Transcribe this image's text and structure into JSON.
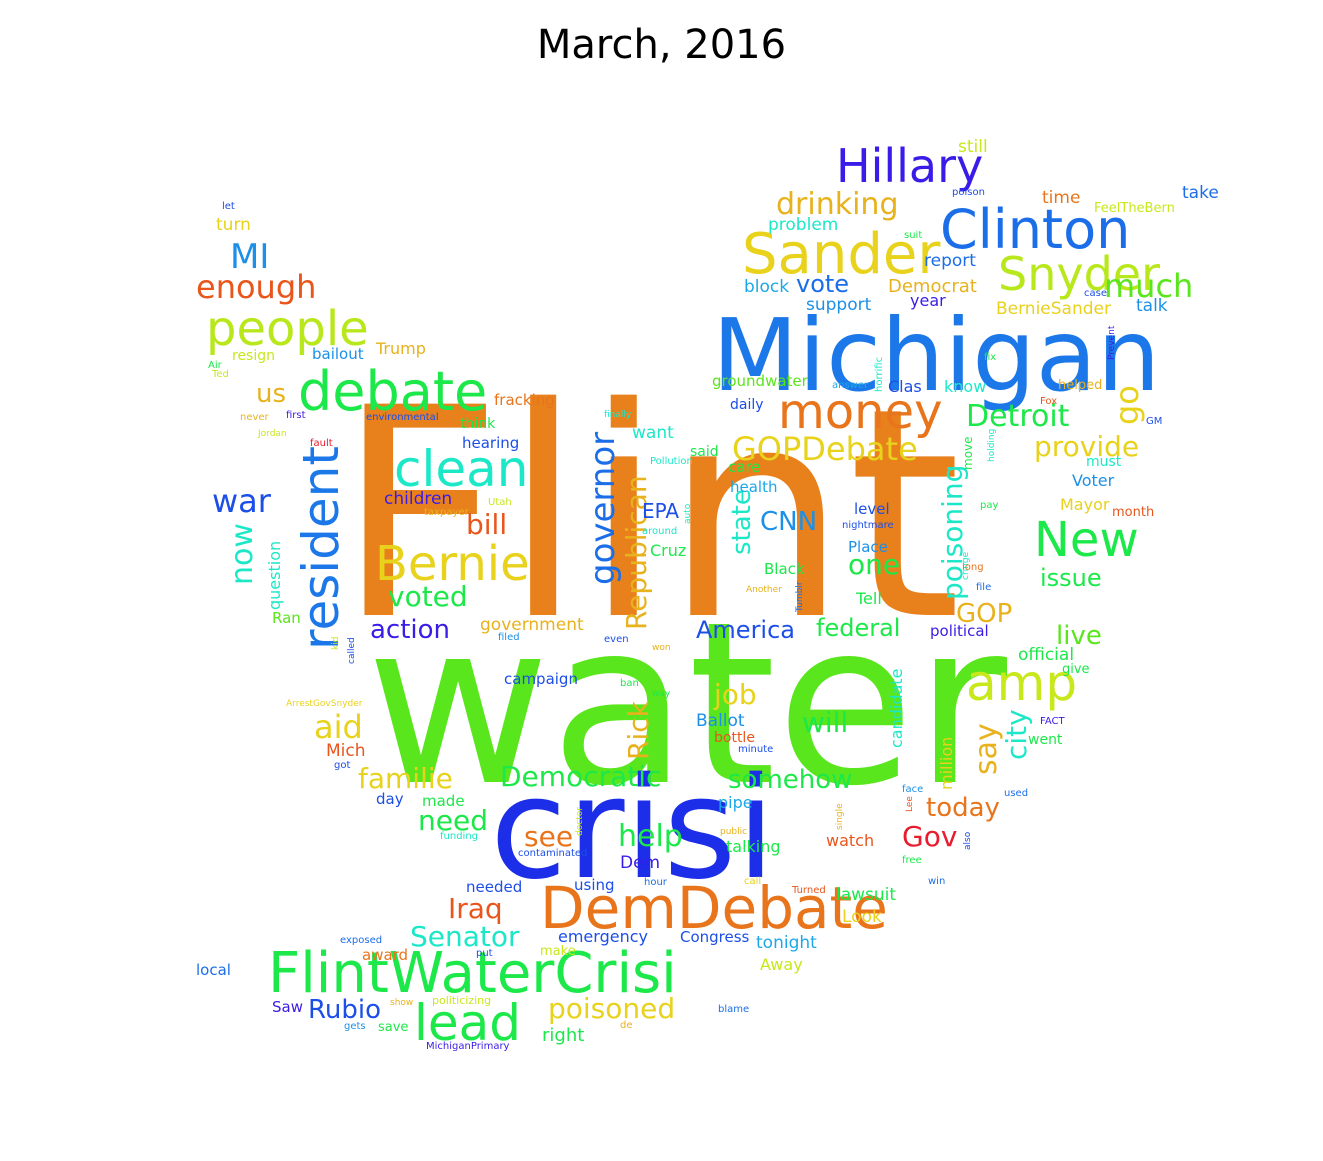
{
  "title": "March, 2016",
  "words": [
    {
      "text": "Flint",
      "size": "xxl",
      "color": "#e8811c"
    },
    {
      "text": "water",
      "size": "xxl",
      "color": "#5ae61c"
    },
    {
      "text": "crisi",
      "size": "xl",
      "color": "#1c2ee8"
    },
    {
      "text": "Michigan",
      "size": "xl",
      "color": "#1c78e8"
    },
    {
      "text": "DemDebate",
      "size": "l",
      "color": "#e8741c"
    },
    {
      "text": "FlintWaterCrisi",
      "size": "l",
      "color": "#1ce84a"
    },
    {
      "text": "Hillary",
      "size": "l",
      "color": "#3a1ce8"
    },
    {
      "text": "Clinton",
      "size": "l",
      "color": "#1c6ee8"
    },
    {
      "text": "Sander",
      "size": "l",
      "color": "#e8d21c"
    },
    {
      "text": "Snyder",
      "size": "l",
      "color": "#b8e81c"
    },
    {
      "text": "debate",
      "size": "l",
      "color": "#1ce84a"
    },
    {
      "text": "people",
      "size": "l",
      "color": "#b8e81c"
    },
    {
      "text": "money",
      "size": "l",
      "color": "#e8741c"
    },
    {
      "text": "clean",
      "size": "l",
      "color": "#1ce8c8"
    },
    {
      "text": "Bernie",
      "size": "l",
      "color": "#e8d21c"
    },
    {
      "text": "resident",
      "size": "l",
      "color": "#1c78e8"
    },
    {
      "text": "New",
      "size": "l",
      "color": "#1ce84a"
    },
    {
      "text": "amp",
      "size": "l",
      "color": "#c8e81c"
    },
    {
      "text": "lead",
      "size": "l",
      "color": "#1ce84a"
    },
    {
      "text": "drinking",
      "size": "m",
      "color": "#e8b21c"
    },
    {
      "text": "MI",
      "size": "m",
      "color": "#1c90e8"
    },
    {
      "text": "enough",
      "size": "m",
      "color": "#e8561c"
    },
    {
      "text": "much",
      "size": "m",
      "color": "#5ae61c"
    },
    {
      "text": "go",
      "size": "m",
      "color": "#e8d21c"
    },
    {
      "text": "Detroit",
      "size": "m",
      "color": "#1ce84a"
    },
    {
      "text": "provide",
      "size": "m",
      "color": "#e8d21c"
    },
    {
      "text": "GOPDebate",
      "size": "m",
      "color": "#e8d21c"
    },
    {
      "text": "governor",
      "size": "m",
      "color": "#1c6ee8"
    },
    {
      "text": "Republican",
      "size": "m",
      "color": "#e8b21c"
    },
    {
      "text": "poisoning",
      "size": "m",
      "color": "#1ce8c8"
    },
    {
      "text": "war",
      "size": "m",
      "color": "#1c4ee8"
    },
    {
      "text": "now",
      "size": "m",
      "color": "#1ce8c8"
    },
    {
      "text": "us",
      "size": "m",
      "color": "#e8b21c"
    },
    {
      "text": "voted",
      "size": "m",
      "color": "#1ce84a"
    },
    {
      "text": "bill",
      "size": "m",
      "color": "#e8561c"
    },
    {
      "text": "state",
      "size": "m",
      "color": "#1ce8c8"
    },
    {
      "text": "CNN",
      "size": "m",
      "color": "#1c90e8"
    },
    {
      "text": "one",
      "size": "m",
      "color": "#1ce84a"
    },
    {
      "text": "issue",
      "size": "m",
      "color": "#1ce84a"
    },
    {
      "text": "GOP",
      "size": "m",
      "color": "#e8b21c"
    },
    {
      "text": "live",
      "size": "m",
      "color": "#5ae61c"
    },
    {
      "text": "say",
      "size": "m",
      "color": "#e8b21c"
    },
    {
      "text": "city",
      "size": "m",
      "color": "#1ce8c8"
    },
    {
      "text": "job",
      "size": "m",
      "color": "#e8d21c"
    },
    {
      "text": "will",
      "size": "m",
      "color": "#1ce84a"
    },
    {
      "text": "aid",
      "size": "m",
      "color": "#e8d21c"
    },
    {
      "text": "Rick",
      "size": "m",
      "color": "#e8b21c"
    },
    {
      "text": "familie",
      "size": "m",
      "color": "#e8d21c"
    },
    {
      "text": "Democratic",
      "size": "m",
      "color": "#1ce84a"
    },
    {
      "text": "somehow",
      "size": "m",
      "color": "#1ce84a"
    },
    {
      "text": "today",
      "size": "m",
      "color": "#e8741c"
    },
    {
      "text": "Gov",
      "size": "m",
      "color": "#e81c2e"
    },
    {
      "text": "need",
      "size": "m",
      "color": "#1ce84a"
    },
    {
      "text": "help",
      "size": "m",
      "color": "#1ce84a"
    },
    {
      "text": "see",
      "size": "m",
      "color": "#e8741c"
    },
    {
      "text": "Iraq",
      "size": "m",
      "color": "#e8561c"
    },
    {
      "text": "Senator",
      "size": "m",
      "color": "#1ce8c8"
    },
    {
      "text": "Rubio",
      "size": "m",
      "color": "#1c4ee8"
    },
    {
      "text": "poisoned",
      "size": "m",
      "color": "#e8d21c"
    },
    {
      "text": "action",
      "size": "m",
      "color": "#3a1ce8"
    },
    {
      "text": "America",
      "size": "m",
      "color": "#1c4ee8"
    },
    {
      "text": "federal",
      "size": "m",
      "color": "#1ce84a"
    },
    {
      "text": "EPA",
      "size": "s",
      "color": "#1c4ee8"
    },
    {
      "text": "vote",
      "size": "m",
      "color": "#1c6ee8"
    },
    {
      "text": "Democrat",
      "size": "s",
      "color": "#e8b21c"
    },
    {
      "text": "report",
      "size": "s",
      "color": "#1c6ee8"
    },
    {
      "text": "block",
      "size": "s",
      "color": "#1ca8e8"
    },
    {
      "text": "support",
      "size": "s",
      "color": "#1c90e8"
    },
    {
      "text": "year",
      "size": "s",
      "color": "#3a1ce8"
    },
    {
      "text": "BernieSander",
      "size": "s",
      "color": "#e8d21c"
    },
    {
      "text": "talk",
      "size": "s",
      "color": "#1c90e8"
    },
    {
      "text": "problem",
      "size": "s",
      "color": "#1ce8c8"
    },
    {
      "text": "still",
      "size": "s",
      "color": "#c8e81c"
    },
    {
      "text": "time",
      "size": "s",
      "color": "#e8741c"
    },
    {
      "text": "take",
      "size": "s",
      "color": "#1c6ee8"
    },
    {
      "text": "FeelTheBern",
      "size": "xs",
      "color": "#c8e81c"
    },
    {
      "text": "turn",
      "size": "s",
      "color": "#e8d21c"
    },
    {
      "text": "resign",
      "size": "xs",
      "color": "#c8e81c"
    },
    {
      "text": "bailout",
      "size": "s",
      "color": "#1c90e8"
    },
    {
      "text": "Trump",
      "size": "s",
      "color": "#e8b21c"
    },
    {
      "text": "fracking",
      "size": "s",
      "color": "#e8741c"
    },
    {
      "text": "think",
      "size": "s",
      "color": "#1ce84a"
    },
    {
      "text": "hearing",
      "size": "s",
      "color": "#1c4ee8"
    },
    {
      "text": "children",
      "size": "s",
      "color": "#3a1ce8"
    },
    {
      "text": "want",
      "size": "s",
      "color": "#1ce8c8"
    },
    {
      "text": "groundwater",
      "size": "s",
      "color": "#5ae61c"
    },
    {
      "text": "Clas",
      "size": "s",
      "color": "#1c4ee8"
    },
    {
      "text": "know",
      "size": "s",
      "color": "#1ce8c8"
    },
    {
      "text": "helped",
      "size": "xs",
      "color": "#e8b21c"
    },
    {
      "text": "daily",
      "size": "s",
      "color": "#1c4ee8"
    },
    {
      "text": "care",
      "size": "s",
      "color": "#1ce84a"
    },
    {
      "text": "health",
      "size": "s",
      "color": "#1ca8e8"
    },
    {
      "text": "said",
      "size": "s",
      "color": "#1ce84a"
    },
    {
      "text": "must",
      "size": "s",
      "color": "#1ce8c8"
    },
    {
      "text": "Voter",
      "size": "s",
      "color": "#1c90e8"
    },
    {
      "text": "Mayor",
      "size": "s",
      "color": "#e8d21c"
    },
    {
      "text": "month",
      "size": "xs",
      "color": "#e8561c"
    },
    {
      "text": "level",
      "size": "s",
      "color": "#1c4ee8"
    },
    {
      "text": "Place",
      "size": "s",
      "color": "#1c90e8"
    },
    {
      "text": "Cruz",
      "size": "s",
      "color": "#1ce84a"
    },
    {
      "text": "Black",
      "size": "s",
      "color": "#1ce84a"
    },
    {
      "text": "Tell",
      "size": "s",
      "color": "#1ce84a"
    },
    {
      "text": "question",
      "size": "s",
      "color": "#1ce8c8"
    },
    {
      "text": "Ran",
      "size": "s",
      "color": "#5ae61c"
    },
    {
      "text": "government",
      "size": "s",
      "color": "#e8b21c"
    },
    {
      "text": "political",
      "size": "s",
      "color": "#3a1ce8"
    },
    {
      "text": "official",
      "size": "s",
      "color": "#1ce84a"
    },
    {
      "text": "give",
      "size": "xs",
      "color": "#1ce84a"
    },
    {
      "text": "campaign",
      "size": "s",
      "color": "#1c4ee8"
    },
    {
      "text": "Ballot",
      "size": "s",
      "color": "#1c90e8"
    },
    {
      "text": "bottle",
      "size": "s",
      "color": "#e8561c"
    },
    {
      "text": "candidate",
      "size": "s",
      "color": "#1ce8c8"
    },
    {
      "text": "million",
      "size": "s",
      "color": "#e8d21c"
    },
    {
      "text": "Mich",
      "size": "s",
      "color": "#e8561c"
    },
    {
      "text": "day",
      "size": "s",
      "color": "#1c4ee8"
    },
    {
      "text": "made",
      "size": "s",
      "color": "#1ce84a"
    },
    {
      "text": "pipe",
      "size": "s",
      "color": "#1ca8e8"
    },
    {
      "text": "Dem",
      "size": "s",
      "color": "#3a1ce8"
    },
    {
      "text": "talking",
      "size": "s",
      "color": "#1ce84a"
    },
    {
      "text": "watch",
      "size": "s",
      "color": "#e8561c"
    },
    {
      "text": "needed",
      "size": "s",
      "color": "#1c4ee8"
    },
    {
      "text": "using",
      "size": "s",
      "color": "#1c4ee8"
    },
    {
      "text": "lawsuit",
      "size": "s",
      "color": "#1ce84a"
    },
    {
      "text": "Look",
      "size": "s",
      "color": "#e8d21c"
    },
    {
      "text": "emergency",
      "size": "s",
      "color": "#1c4ee8"
    },
    {
      "text": "Congress",
      "size": "s",
      "color": "#1c4ee8"
    },
    {
      "text": "tonight",
      "size": "s",
      "color": "#1ca8e8"
    },
    {
      "text": "award",
      "size": "s",
      "color": "#e8741c"
    },
    {
      "text": "make",
      "size": "xs",
      "color": "#c8e81c"
    },
    {
      "text": "Away",
      "size": "s",
      "color": "#c8e81c"
    },
    {
      "text": "local",
      "size": "s",
      "color": "#1c6ee8"
    },
    {
      "text": "Saw",
      "size": "s",
      "color": "#3a1ce8"
    },
    {
      "text": "save",
      "size": "xs",
      "color": "#1ce84a"
    },
    {
      "text": "right",
      "size": "s",
      "color": "#1ce84a"
    },
    {
      "text": "move",
      "size": "xs",
      "color": "#1ce84a"
    },
    {
      "text": "let",
      "size": "xxs",
      "color": "#1c4ee8"
    },
    {
      "text": "poison",
      "size": "xxs",
      "color": "#1c4ee8"
    },
    {
      "text": "suit",
      "size": "xxs",
      "color": "#1ce84a"
    },
    {
      "text": "case",
      "size": "xxs",
      "color": "#1c4ee8"
    },
    {
      "text": "Prevent",
      "size": "xxs",
      "color": "#3a1ce8"
    },
    {
      "text": "fix",
      "size": "xxs",
      "color": "#1ce84a"
    },
    {
      "text": "horrific",
      "size": "xxs",
      "color": "#1ce8c8"
    },
    {
      "text": "answer",
      "size": "xxs",
      "color": "#1ca8e8"
    },
    {
      "text": "Fox",
      "size": "xxs",
      "color": "#e8561c"
    },
    {
      "text": "GM",
      "size": "xxs",
      "color": "#1c4ee8"
    },
    {
      "text": "Air",
      "size": "xxs",
      "color": "#1ce84a"
    },
    {
      "text": "Ted",
      "size": "xxs",
      "color": "#c8e81c"
    },
    {
      "text": "never",
      "size": "xxs",
      "color": "#e8b21c"
    },
    {
      "text": "first",
      "size": "xxs",
      "color": "#3a1ce8"
    },
    {
      "text": "environmental",
      "size": "xxs",
      "color": "#1c4ee8"
    },
    {
      "text": "finally",
      "size": "xxs",
      "color": "#1ce8c8"
    },
    {
      "text": "Jordan",
      "size": "xxs",
      "color": "#c8e81c"
    },
    {
      "text": "fault",
      "size": "xxs",
      "color": "#e81c2e"
    },
    {
      "text": "holding",
      "size": "xxs",
      "color": "#1ce8c8"
    },
    {
      "text": "Pollution",
      "size": "xxs",
      "color": "#1ce8c8"
    },
    {
      "text": "Utah",
      "size": "xxs",
      "color": "#c8e81c"
    },
    {
      "text": "auto",
      "size": "xxs",
      "color": "#1ce8c8"
    },
    {
      "text": "around",
      "size": "xxs",
      "color": "#1ce8c8"
    },
    {
      "text": "taxpayer",
      "size": "xxs",
      "color": "#e8b21c"
    },
    {
      "text": "nightmare",
      "size": "xxs",
      "color": "#1c4ee8"
    },
    {
      "text": "cringe",
      "size": "xxs",
      "color": "#1ce8c8"
    },
    {
      "text": "pay",
      "size": "xxs",
      "color": "#1ce84a"
    },
    {
      "text": "long",
      "size": "xxs",
      "color": "#e8741c"
    },
    {
      "text": "file",
      "size": "xxs",
      "color": "#1c6ee8"
    },
    {
      "text": "Another",
      "size": "xxs",
      "color": "#e8b21c"
    },
    {
      "text": "Tumblr",
      "size": "xxs",
      "color": "#1c6ee8"
    },
    {
      "text": "kid",
      "size": "xxs",
      "color": "#c8e81c"
    },
    {
      "text": "called",
      "size": "xxs",
      "color": "#1c4ee8"
    },
    {
      "text": "filed",
      "size": "xxs",
      "color": "#1c90e8"
    },
    {
      "text": "even",
      "size": "xxs",
      "color": "#1c4ee8"
    },
    {
      "text": "won",
      "size": "xxs",
      "color": "#e8b21c"
    },
    {
      "text": "ban",
      "size": "xxs",
      "color": "#1ce84a"
    },
    {
      "text": "way",
      "size": "xxs",
      "color": "#1ce84a"
    },
    {
      "text": "ArrestGovSnyder",
      "size": "xxs",
      "color": "#e8d21c"
    },
    {
      "text": "got",
      "size": "xxs",
      "color": "#1c4ee8"
    },
    {
      "text": "minute",
      "size": "xxs",
      "color": "#1c4ee8"
    },
    {
      "text": "FACT",
      "size": "xxs",
      "color": "#3a1ce8"
    },
    {
      "text": "went",
      "size": "xs",
      "color": "#1ce84a"
    },
    {
      "text": "face",
      "size": "xxs",
      "color": "#1c90e8"
    },
    {
      "text": "single",
      "size": "xxs",
      "color": "#e8b21c"
    },
    {
      "text": "Lee",
      "size": "xxs",
      "color": "#e8561c"
    },
    {
      "text": "used",
      "size": "xxs",
      "color": "#1c6ee8"
    },
    {
      "text": "doctor",
      "size": "xxs",
      "color": "#c8e81c"
    },
    {
      "text": "public",
      "size": "xxs",
      "color": "#e8b21c"
    },
    {
      "text": "also",
      "size": "xxs",
      "color": "#1c4ee8"
    },
    {
      "text": "free",
      "size": "xxs",
      "color": "#1ce84a"
    },
    {
      "text": "funding",
      "size": "xxs",
      "color": "#1ce8c8"
    },
    {
      "text": "contaminated",
      "size": "xxs",
      "color": "#1c4ee8"
    },
    {
      "text": "hour",
      "size": "xxs",
      "color": "#1c6ee8"
    },
    {
      "text": "call",
      "size": "xxs",
      "color": "#e8d21c"
    },
    {
      "text": "win",
      "size": "xxs",
      "color": "#1c6ee8"
    },
    {
      "text": "Turned",
      "size": "xxs",
      "color": "#e8561c"
    },
    {
      "text": "exposed",
      "size": "xxs",
      "color": "#1c6ee8"
    },
    {
      "text": "put",
      "size": "xxs",
      "color": "#1c4ee8"
    },
    {
      "text": "show",
      "size": "xxs",
      "color": "#e8b21c"
    },
    {
      "text": "politicizing",
      "size": "xxs",
      "color": "#c8e81c"
    },
    {
      "text": "blame",
      "size": "xxs",
      "color": "#1c6ee8"
    },
    {
      "text": "gets",
      "size": "xxs",
      "color": "#1c90e8"
    },
    {
      "text": "de",
      "size": "xxs",
      "color": "#e8b21c"
    },
    {
      "text": "MichiganPrimary",
      "size": "xxs",
      "color": "#3a1ce8"
    }
  ]
}
